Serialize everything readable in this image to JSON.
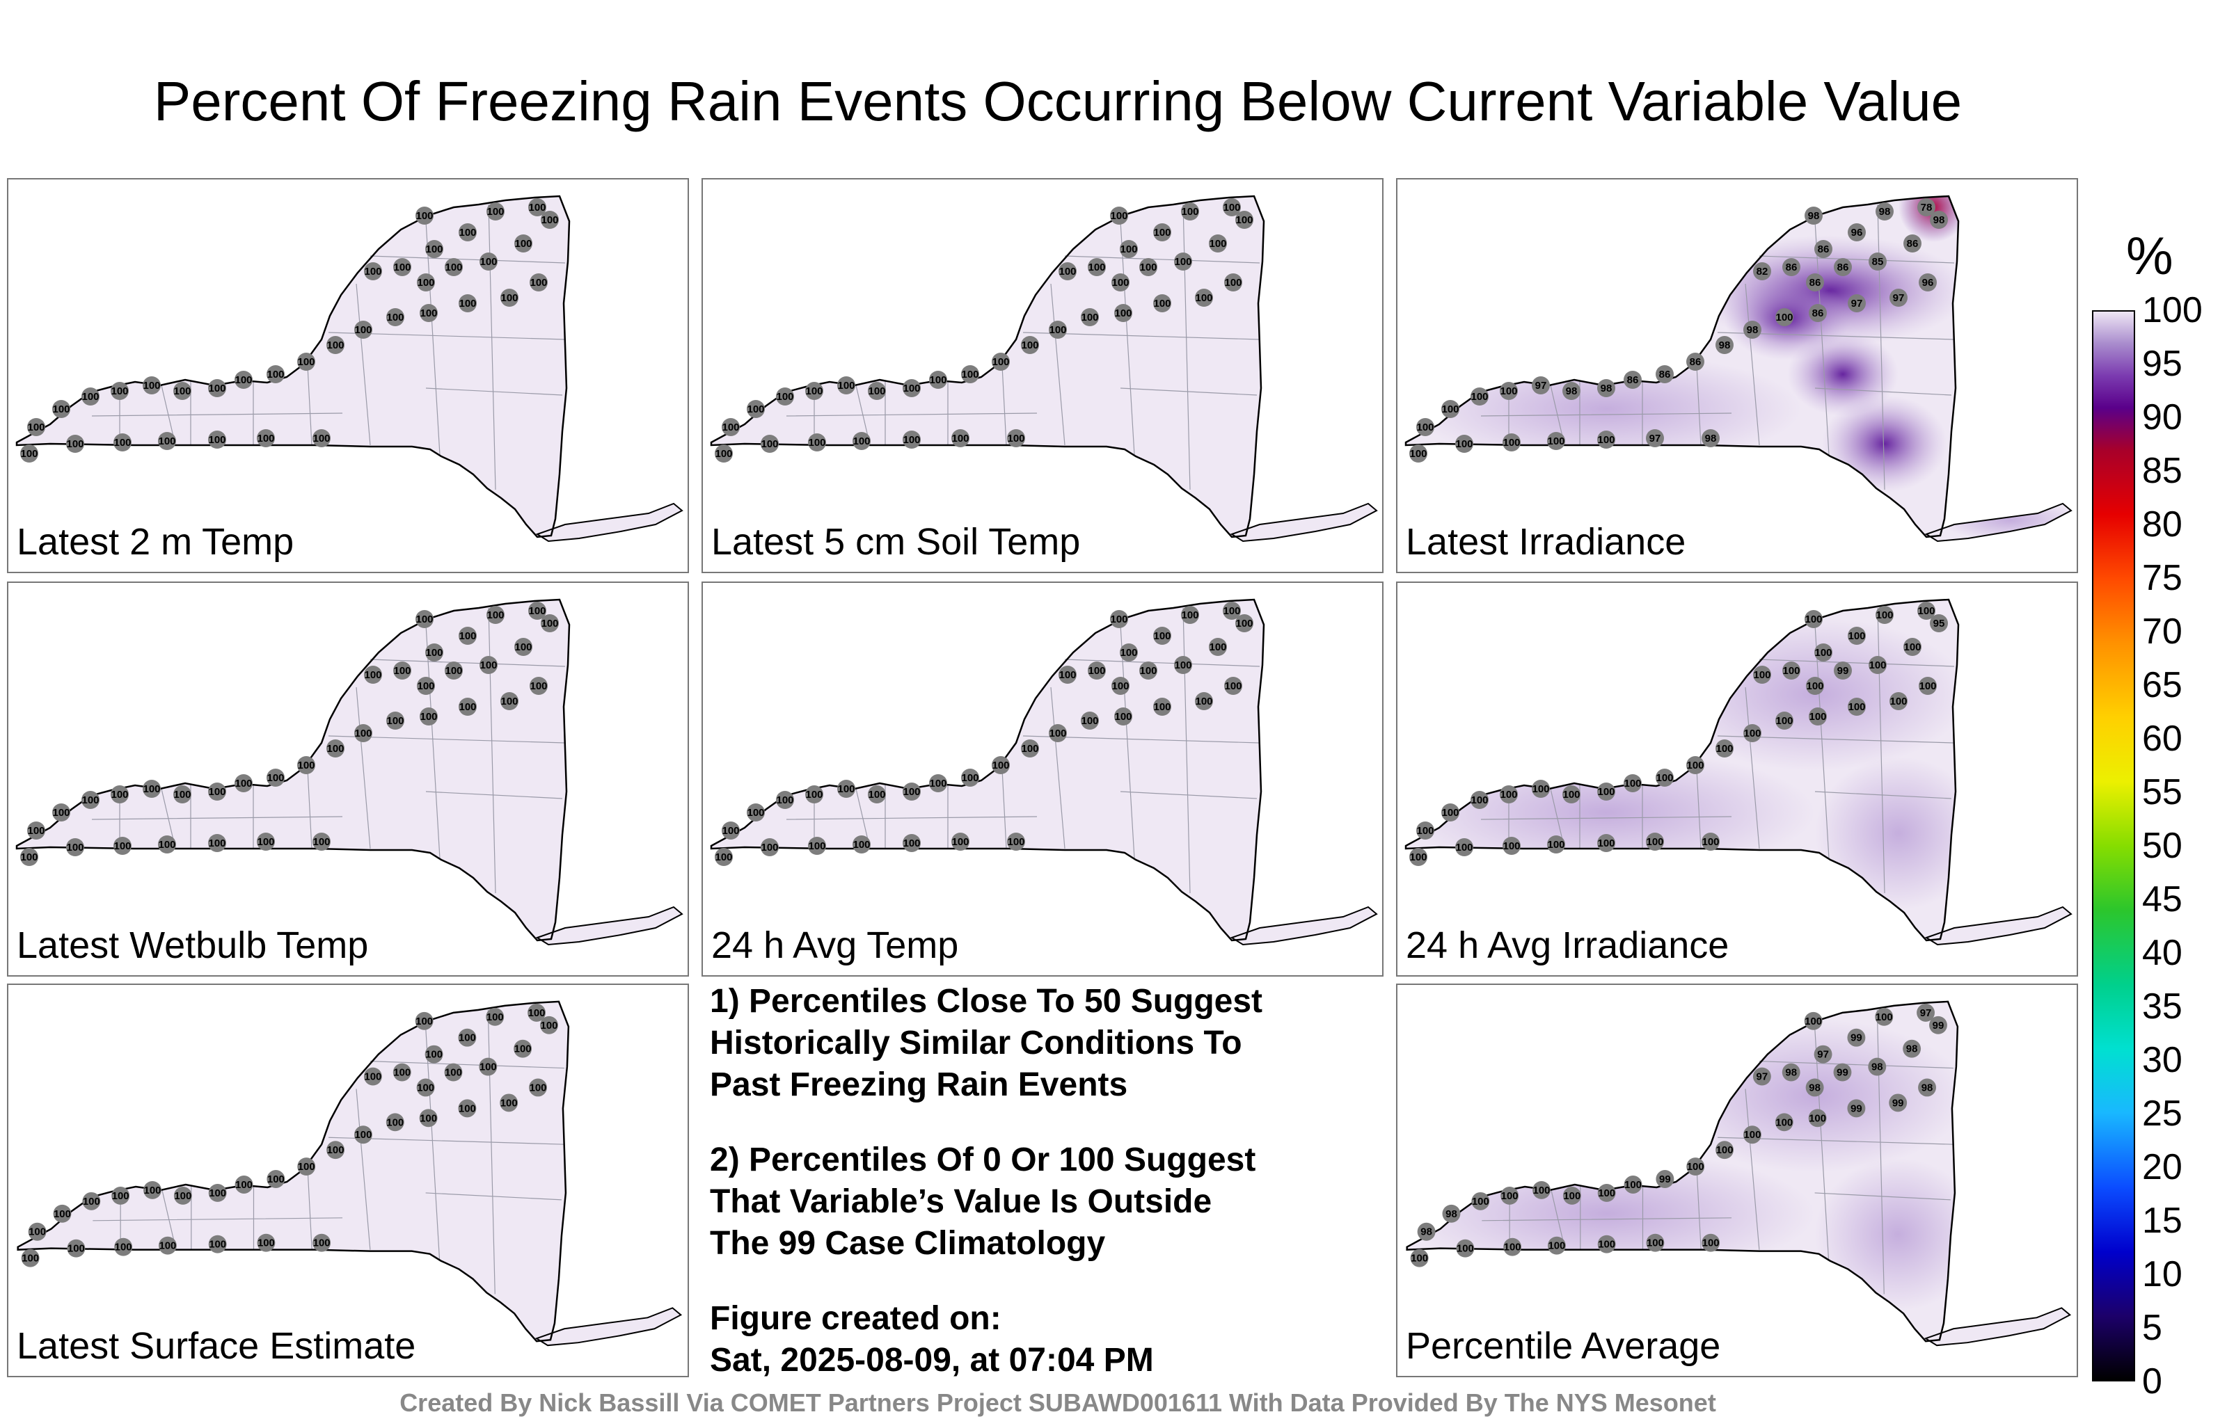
{
  "title": "Percent Of Freezing Rain Events Occurring Below Current Variable Value",
  "panels": [
    {
      "id": "2m-temp",
      "label": "Latest 2 m Temp",
      "shading": "uniform",
      "stations": [
        "100",
        "100",
        "100",
        "100",
        "100",
        "100",
        "100",
        "100",
        "100",
        "100",
        "100",
        "100",
        "100",
        "100",
        "100",
        "100",
        "100",
        "100",
        "100",
        "100",
        "100",
        "100",
        "100",
        "100",
        "100",
        "100",
        "100",
        "100",
        "100",
        "100",
        "100",
        "100",
        "100",
        "100",
        "100",
        "100"
      ]
    },
    {
      "id": "soil-temp",
      "label": "Latest 5 cm Soil Temp",
      "shading": "uniform",
      "stations": [
        "100",
        "100",
        "100",
        "100",
        "100",
        "100",
        "100",
        "100",
        "100",
        "100",
        "100",
        "100",
        "100",
        "100",
        "100",
        "100",
        "100",
        "100",
        "100",
        "100",
        "100",
        "100",
        "100",
        "100",
        "100",
        "100",
        "100",
        "100",
        "100",
        "100",
        "100",
        "100",
        "100",
        "100",
        "100",
        "100"
      ]
    },
    {
      "id": "irradiance",
      "label": "Latest Irradiance",
      "shading": "irradiance",
      "stations": [
        "98",
        "98",
        "78",
        "98",
        "86",
        "96",
        "86",
        "86",
        "82",
        "86",
        "86",
        "85",
        "96",
        "97",
        "97",
        "86",
        "100",
        "98",
        "98",
        "86",
        "86",
        "86",
        "98",
        "98",
        "97",
        "100",
        "100",
        "100",
        "100",
        "100",
        "100",
        "100",
        "100",
        "100",
        "97",
        "98"
      ]
    },
    {
      "id": "wetbulb",
      "label": "Latest Wetbulb Temp",
      "shading": "uniform",
      "stations": [
        "100",
        "100",
        "100",
        "100",
        "100",
        "100",
        "100",
        "100",
        "100",
        "100",
        "100",
        "100",
        "100",
        "100",
        "100",
        "100",
        "100",
        "100",
        "100",
        "100",
        "100",
        "100",
        "100",
        "100",
        "100",
        "100",
        "100",
        "100",
        "100",
        "100",
        "100",
        "100",
        "100",
        "100",
        "100",
        "100"
      ]
    },
    {
      "id": "avg-temp",
      "label": "24 h Avg Temp",
      "shading": "uniform",
      "stations": [
        "100",
        "100",
        "100",
        "100",
        "100",
        "100",
        "100",
        "100",
        "100",
        "100",
        "100",
        "100",
        "100",
        "100",
        "100",
        "100",
        "100",
        "100",
        "100",
        "100",
        "100",
        "100",
        "100",
        "100",
        "100",
        "100",
        "100",
        "100",
        "100",
        "100",
        "100",
        "100",
        "100",
        "100",
        "100",
        "100"
      ]
    },
    {
      "id": "avg-irradiance",
      "label": "24 h Avg Irradiance",
      "shading": "light",
      "stations": [
        "100",
        "100",
        "100",
        "95",
        "100",
        "100",
        "100",
        "100",
        "100",
        "100",
        "99",
        "100",
        "100",
        "100",
        "100",
        "100",
        "100",
        "100",
        "100",
        "100",
        "100",
        "100",
        "100",
        "100",
        "100",
        "100",
        "100",
        "100",
        "100",
        "100",
        "100",
        "100",
        "100",
        "100",
        "100",
        "100"
      ]
    },
    {
      "id": "surface",
      "label": "Latest Surface Estimate",
      "shading": "uniform",
      "stations": [
        "100",
        "100",
        "100",
        "100",
        "100",
        "100",
        "100",
        "100",
        "100",
        "100",
        "100",
        "100",
        "100",
        "100",
        "100",
        "100",
        "100",
        "100",
        "100",
        "100",
        "100",
        "100",
        "100",
        "100",
        "100",
        "100",
        "100",
        "100",
        "100",
        "100",
        "100",
        "100",
        "100",
        "100",
        "100",
        "100"
      ]
    },
    {
      "id": "average",
      "label": "Percentile Average",
      "shading": "light",
      "stations": [
        "100",
        "100",
        "97",
        "99",
        "98",
        "99",
        "97",
        "98",
        "97",
        "98",
        "99",
        "98",
        "98",
        "99",
        "99",
        "100",
        "100",
        "100",
        "100",
        "100",
        "99",
        "100",
        "100",
        "100",
        "100",
        "100",
        "100",
        "98",
        "98",
        "100",
        "100",
        "100",
        "100",
        "100",
        "100",
        "100"
      ]
    }
  ],
  "notes": {
    "note1": [
      "1) Percentiles Close To 50 Suggest",
      "Historically Similar Conditions To",
      "Past Freezing Rain Events"
    ],
    "note2": [
      "2) Percentiles Of 0 Or 100 Suggest",
      "That Variable’s Value Is Outside",
      "The 99 Case Climatology"
    ],
    "created_label": "Figure created on:",
    "created_value": "Sat, 2025-08-09, at 07:04 PM"
  },
  "colorbar": {
    "unit": "%",
    "ticks": [
      "100",
      "95",
      "90",
      "85",
      "80",
      "75",
      "70",
      "65",
      "60",
      "55",
      "50",
      "45",
      "40",
      "35",
      "30",
      "25",
      "20",
      "15",
      "10",
      "5",
      "0"
    ]
  },
  "credit": "Created By Nick Bassill Via COMET Partners Project SUBAWD001611 With Data Provided By The NYS Mesonet",
  "colors": {
    "state_fill": "#efe8f4",
    "station_dot": "#7d7d7d",
    "moderate": "#b79bd6",
    "strong": "#5f1a9b",
    "peak": "#b0003a"
  }
}
